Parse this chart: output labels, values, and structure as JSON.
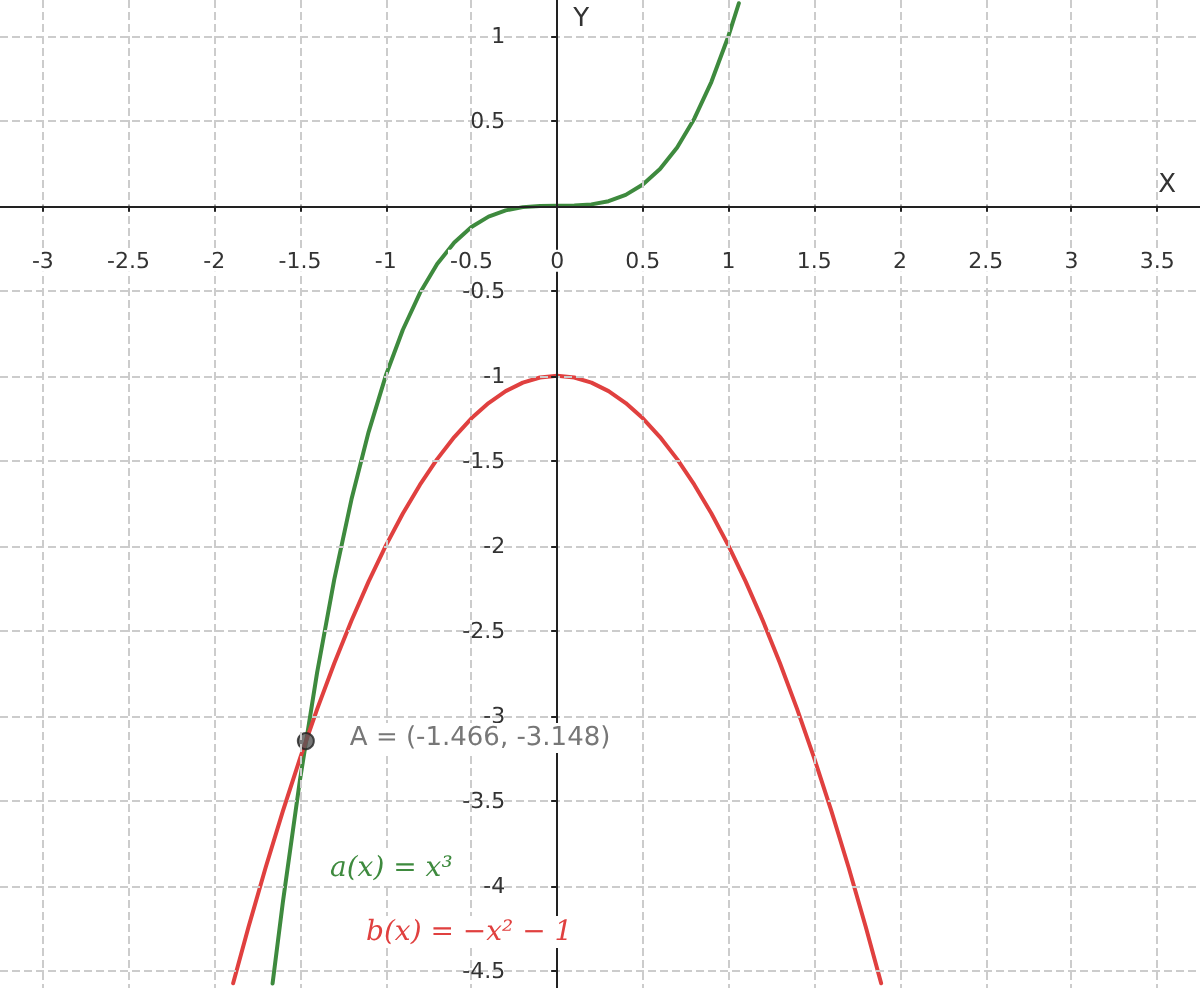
{
  "chart_data": {
    "type": "line",
    "xlabel": "X",
    "ylabel": "Y",
    "xlim": [
      -3.25,
      3.75
    ],
    "ylim": [
      -4.6,
      1.21
    ],
    "xticks": [
      -3,
      -2.5,
      -2,
      -1.5,
      -1,
      -0.5,
      0,
      0.5,
      1,
      1.5,
      2,
      2.5,
      3,
      3.5
    ],
    "yticks": [
      -4.5,
      -4,
      -3.5,
      -3,
      -2.5,
      -2,
      -1.5,
      -1,
      -0.5,
      0.5,
      1
    ],
    "grid": true,
    "marker": "none",
    "line_style": "solid",
    "series": [
      {
        "name": "a(x) = x³",
        "color": "#3e8a3e",
        "x": [
          -1.66,
          -1.6,
          -1.5,
          -1.4,
          -1.3,
          -1.2,
          -1.1,
          -1,
          -0.9,
          -0.8,
          -0.7,
          -0.6,
          -0.5,
          -0.4,
          -0.3,
          -0.2,
          -0.1,
          0,
          0.1,
          0.2,
          0.3,
          0.4,
          0.5,
          0.6,
          0.7,
          0.8,
          0.9,
          1,
          1.06
        ],
        "values": [
          -4.574,
          -4.096,
          -3.375,
          -2.744,
          -2.197,
          -1.728,
          -1.331,
          -1,
          -0.729,
          -0.512,
          -0.343,
          -0.216,
          -0.125,
          -0.064,
          -0.027,
          -0.008,
          -0.001,
          0,
          0.001,
          0.008,
          0.027,
          0.064,
          0.125,
          0.216,
          0.343,
          0.512,
          0.729,
          1,
          1.191
        ]
      },
      {
        "name": "b(x) = −x² − 1",
        "color": "#e0403f",
        "x": [
          -1.89,
          -1.8,
          -1.7,
          -1.6,
          -1.5,
          -1.4,
          -1.3,
          -1.2,
          -1.1,
          -1,
          -0.9,
          -0.8,
          -0.7,
          -0.6,
          -0.5,
          -0.4,
          -0.3,
          -0.2,
          -0.1,
          0,
          0.1,
          0.2,
          0.3,
          0.4,
          0.5,
          0.6,
          0.7,
          0.8,
          0.9,
          1,
          1.1,
          1.2,
          1.3,
          1.4,
          1.5,
          1.6,
          1.7,
          1.8,
          1.89
        ],
        "values": [
          -4.572,
          -4.24,
          -3.89,
          -3.56,
          -3.25,
          -2.96,
          -2.69,
          -2.44,
          -2.21,
          -2,
          -1.81,
          -1.64,
          -1.49,
          -1.36,
          -1.25,
          -1.16,
          -1.09,
          -1.04,
          -1.01,
          -1,
          -1.01,
          -1.04,
          -1.09,
          -1.16,
          -1.25,
          -1.36,
          -1.49,
          -1.64,
          -1.81,
          -2,
          -2.21,
          -2.44,
          -2.69,
          -2.96,
          -3.25,
          -3.56,
          -3.89,
          -4.24,
          -4.572
        ]
      },
      {
        "type": "scatter",
        "marker": "circle",
        "color": "#555555",
        "x": [
          -1.466
        ],
        "values": [
          -3.148
        ]
      }
    ],
    "annotations": [
      {
        "text": "A = (-1.466, -3.148)",
        "x": -1.466,
        "y": -3.148
      }
    ]
  }
}
